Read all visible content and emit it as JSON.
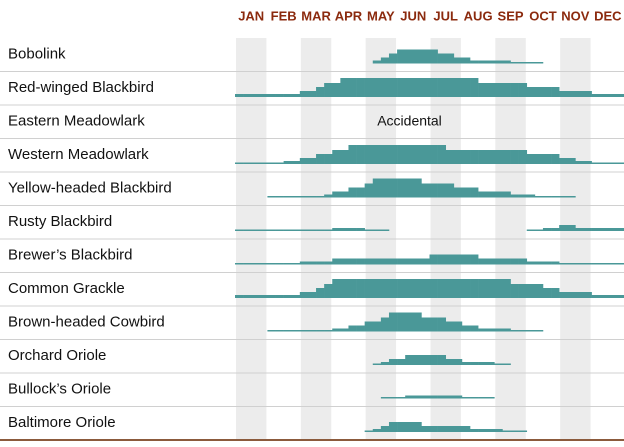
{
  "chart_data": {
    "type": "abundance",
    "months": [
      "JAN",
      "FEB",
      "MAR",
      "APR",
      "MAY",
      "JUN",
      "JUL",
      "AUG",
      "SEP",
      "OCT",
      "NOV",
      "DEC"
    ],
    "color": "#4a9898",
    "series": [
      {
        "name": "Bobolink",
        "values": [
          0,
          0,
          0,
          0,
          0,
          0,
          0,
          0,
          0,
          0,
          0,
          0,
          0,
          0,
          0,
          0,
          0,
          2,
          3,
          4,
          5,
          5,
          5,
          5,
          5,
          4,
          4,
          3,
          3,
          2,
          2,
          2,
          2,
          2,
          1,
          1,
          1,
          1,
          0,
          0,
          0,
          0,
          0,
          0,
          0,
          0,
          0,
          0
        ]
      },
      {
        "name": "Red-winged Blackbird",
        "values": [
          2,
          2,
          2,
          2,
          2,
          2,
          2,
          2,
          3,
          3,
          4,
          5,
          5,
          6,
          6,
          6,
          6,
          6,
          6,
          6,
          6,
          6,
          6,
          6,
          6,
          6,
          6,
          6,
          6,
          6,
          5,
          5,
          5,
          5,
          5,
          5,
          4,
          4,
          4,
          4,
          3,
          3,
          3,
          3,
          2,
          2,
          2,
          2
        ]
      },
      {
        "name": "Eastern Meadowlark",
        "note": "Accidental",
        "values": []
      },
      {
        "name": "Western Meadowlark",
        "values": [
          1,
          1,
          1,
          1,
          1,
          1,
          2,
          2,
          3,
          3,
          4,
          4,
          5,
          5,
          6,
          6,
          6,
          6,
          6,
          6,
          6,
          6,
          6,
          6,
          6,
          6,
          5,
          5,
          5,
          5,
          5,
          5,
          5,
          5,
          5,
          5,
          4,
          4,
          4,
          4,
          3,
          3,
          2,
          2,
          1,
          1,
          1,
          1
        ]
      },
      {
        "name": "Yellow-headed Blackbird",
        "values": [
          0,
          0,
          0,
          0,
          1,
          1,
          1,
          1,
          1,
          1,
          1,
          2,
          3,
          3,
          4,
          4,
          5,
          6,
          6,
          6,
          6,
          6,
          6,
          5,
          5,
          5,
          5,
          4,
          4,
          4,
          3,
          3,
          3,
          3,
          2,
          2,
          2,
          1,
          1,
          1,
          1,
          1,
          0,
          0,
          0,
          0,
          0,
          0
        ]
      },
      {
        "name": "Rusty Blackbird",
        "values": [
          1,
          1,
          1,
          1,
          1,
          1,
          1,
          1,
          1,
          1,
          1,
          1,
          2,
          2,
          2,
          2,
          1,
          1,
          1,
          0,
          0,
          0,
          0,
          0,
          0,
          0,
          0,
          0,
          0,
          0,
          0,
          0,
          0,
          0,
          0,
          0,
          1,
          1,
          2,
          2,
          3,
          3,
          2,
          2,
          2,
          2,
          2,
          2
        ]
      },
      {
        "name": "Brewer’s Blackbird",
        "values": [
          1,
          1,
          1,
          1,
          1,
          1,
          1,
          1,
          2,
          2,
          2,
          2,
          3,
          3,
          3,
          3,
          3,
          3,
          3,
          3,
          3,
          3,
          3,
          3,
          4,
          4,
          4,
          4,
          4,
          4,
          3,
          3,
          3,
          3,
          3,
          3,
          2,
          2,
          2,
          2,
          1,
          1,
          1,
          1,
          1,
          1,
          1,
          1
        ]
      },
      {
        "name": "Common Grackle",
        "values": [
          2,
          2,
          2,
          2,
          2,
          2,
          2,
          2,
          3,
          3,
          4,
          5,
          6,
          6,
          6,
          6,
          6,
          6,
          6,
          6,
          6,
          6,
          6,
          6,
          6,
          6,
          6,
          6,
          6,
          6,
          6,
          6,
          6,
          6,
          5,
          5,
          5,
          5,
          4,
          4,
          3,
          3,
          3,
          3,
          2,
          2,
          2,
          2
        ]
      },
      {
        "name": "Brown-headed Cowbird",
        "values": [
          0,
          0,
          0,
          0,
          1,
          1,
          1,
          1,
          1,
          1,
          1,
          1,
          2,
          2,
          3,
          3,
          4,
          4,
          5,
          6,
          6,
          6,
          6,
          5,
          5,
          5,
          4,
          4,
          3,
          3,
          2,
          2,
          2,
          2,
          1,
          1,
          1,
          1,
          0,
          0,
          0,
          0,
          0,
          0,
          0,
          0,
          0,
          0
        ]
      },
      {
        "name": "Orchard Oriole",
        "values": [
          0,
          0,
          0,
          0,
          0,
          0,
          0,
          0,
          0,
          0,
          0,
          0,
          0,
          0,
          0,
          0,
          0,
          1,
          2,
          3,
          3,
          4,
          4,
          4,
          4,
          4,
          3,
          3,
          2,
          2,
          2,
          2,
          1,
          1,
          0,
          0,
          0,
          0,
          0,
          0,
          0,
          0,
          0,
          0,
          0,
          0,
          0,
          0
        ]
      },
      {
        "name": "Bullock’s Oriole",
        "values": [
          0,
          0,
          0,
          0,
          0,
          0,
          0,
          0,
          0,
          0,
          0,
          0,
          0,
          0,
          0,
          0,
          0,
          0,
          1,
          1,
          1,
          2,
          2,
          2,
          2,
          2,
          2,
          2,
          1,
          1,
          1,
          1,
          0,
          0,
          0,
          0,
          0,
          0,
          0,
          0,
          0,
          0,
          0,
          0,
          0,
          0,
          0,
          0
        ]
      },
      {
        "name": "Baltimore Oriole",
        "values": [
          0,
          0,
          0,
          0,
          0,
          0,
          0,
          0,
          0,
          0,
          0,
          0,
          0,
          0,
          0,
          0,
          1,
          2,
          3,
          4,
          4,
          4,
          4,
          3,
          3,
          3,
          3,
          3,
          3,
          2,
          2,
          2,
          2,
          1,
          1,
          1,
          0,
          0,
          0,
          0,
          0,
          0,
          0,
          0,
          0,
          0,
          0,
          0
        ]
      }
    ]
  }
}
